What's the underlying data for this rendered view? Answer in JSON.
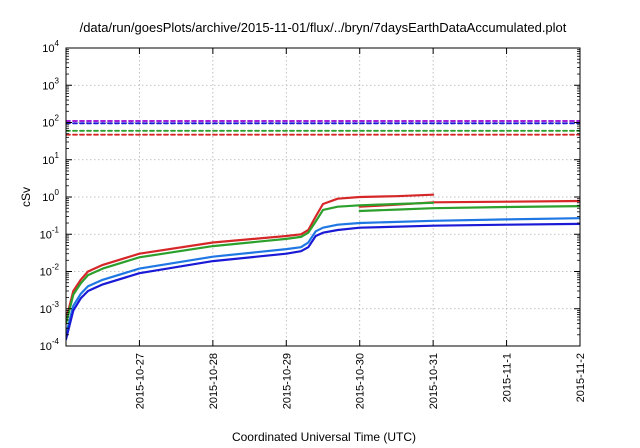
{
  "chart_data": {
    "type": "line",
    "title": "/data/run/goesPlots/archive/2015-11-01/flux/../bryn/7daysEarthDataAccumulated.plot",
    "xlabel": "Coordinated Universal Time (UTC)",
    "ylabel": "cSv",
    "yscale": "log",
    "ylim": [
      0.0001,
      10000
    ],
    "xlim": [
      "2015-10-26",
      "2015-11-02"
    ],
    "grid": true,
    "legend": "none",
    "y_ticks": [
      {
        "value": 0.0001,
        "base": "10",
        "exp": "-4"
      },
      {
        "value": 0.001,
        "base": "10",
        "exp": "-3"
      },
      {
        "value": 0.01,
        "base": "10",
        "exp": "-2"
      },
      {
        "value": 0.1,
        "base": "10",
        "exp": "-1"
      },
      {
        "value": 1,
        "base": "10",
        "exp": "0"
      },
      {
        "value": 10,
        "base": "10",
        "exp": "1"
      },
      {
        "value": 100,
        "base": "10",
        "exp": "2"
      },
      {
        "value": 1000,
        "base": "10",
        "exp": "3"
      },
      {
        "value": 10000,
        "base": "10",
        "exp": "4"
      }
    ],
    "x_ticks": [
      {
        "value": "2015-10-27",
        "label": "2015-10-27"
      },
      {
        "value": "2015-10-28",
        "label": "2015-10-28"
      },
      {
        "value": "2015-10-29",
        "label": "2015-10-29"
      },
      {
        "value": "2015-10-30",
        "label": "2015-10-30"
      },
      {
        "value": "2015-10-31",
        "label": "2015-10-31"
      },
      {
        "value": "2015-11-01",
        "label": "2015-11-1"
      },
      {
        "value": "2015-11-02",
        "label": "2015-11-2"
      }
    ],
    "series": [
      {
        "color": "#d62728",
        "style": "solid",
        "x": [
          "2015-10-26T00:00",
          "2015-10-26T02:24",
          "2015-10-26T04:48",
          "2015-10-26T07:12",
          "2015-10-26T12:00",
          "2015-10-27T00:00",
          "2015-10-28T00:00",
          "2015-10-29T00:00",
          "2015-10-29T04:48",
          "2015-10-29T07:12",
          "2015-10-29T09:36",
          "2015-10-29T12:00",
          "2015-10-29T16:48",
          "2015-10-30T00:00",
          "2015-10-30T12:00",
          "2015-10-31T00:00"
        ],
        "y": [
          0.0005,
          0.003,
          0.006,
          0.01,
          0.015,
          0.03,
          0.06,
          0.09,
          0.1,
          0.13,
          0.3,
          0.65,
          0.9,
          1.0,
          1.05,
          1.15
        ]
      },
      {
        "color": "#d62728",
        "style": "solid",
        "x": [
          "2015-10-30T00:00",
          "2015-10-30T12:00",
          "2015-10-31T00:00",
          "2015-11-01T00:00",
          "2015-11-02T00:00"
        ],
        "y": [
          0.55,
          0.62,
          0.72,
          0.75,
          0.78
        ]
      },
      {
        "color": "#2ca02c",
        "style": "solid",
        "x": [
          "2015-10-26T00:00",
          "2015-10-26T02:24",
          "2015-10-26T04:48",
          "2015-10-26T07:12",
          "2015-10-26T12:00",
          "2015-10-27T00:00",
          "2015-10-28T00:00",
          "2015-10-29T00:00",
          "2015-10-29T04:48",
          "2015-10-29T07:12",
          "2015-10-29T09:36",
          "2015-10-29T12:00",
          "2015-10-29T16:48",
          "2015-10-30T00:00",
          "2015-10-30T12:00",
          "2015-10-31T00:00"
        ],
        "y": [
          0.0004,
          0.0024,
          0.0048,
          0.008,
          0.012,
          0.024,
          0.048,
          0.075,
          0.085,
          0.11,
          0.22,
          0.45,
          0.55,
          0.6,
          0.65,
          0.7
        ]
      },
      {
        "color": "#2ca02c",
        "style": "solid",
        "x": [
          "2015-10-30T00:00",
          "2015-10-30T12:00",
          "2015-10-31T00:00",
          "2015-11-01T00:00",
          "2015-11-02T00:00"
        ],
        "y": [
          0.42,
          0.46,
          0.5,
          0.54,
          0.57
        ]
      },
      {
        "color": "#1f77e4",
        "style": "solid",
        "x": [
          "2015-10-26T00:00",
          "2015-10-26T02:24",
          "2015-10-26T04:48",
          "2015-10-26T07:12",
          "2015-10-26T12:00",
          "2015-10-27T00:00",
          "2015-10-28T00:00",
          "2015-10-29T00:00",
          "2015-10-29T04:48",
          "2015-10-29T07:12",
          "2015-10-29T09:36",
          "2015-10-29T12:00",
          "2015-10-29T16:48",
          "2015-10-30T00:00",
          "2015-10-31T00:00",
          "2015-11-01T00:00",
          "2015-11-02T00:00"
        ],
        "y": [
          0.0002,
          0.0012,
          0.0025,
          0.004,
          0.006,
          0.012,
          0.025,
          0.04,
          0.045,
          0.06,
          0.12,
          0.15,
          0.18,
          0.2,
          0.23,
          0.25,
          0.27
        ]
      },
      {
        "color": "#1a1ad6",
        "style": "solid",
        "x": [
          "2015-10-26T00:00",
          "2015-10-26T02:24",
          "2015-10-26T04:48",
          "2015-10-26T07:12",
          "2015-10-26T12:00",
          "2015-10-27T00:00",
          "2015-10-28T00:00",
          "2015-10-29T00:00",
          "2015-10-29T04:48",
          "2015-10-29T07:12",
          "2015-10-29T09:36",
          "2015-10-29T12:00",
          "2015-10-29T16:48",
          "2015-10-30T00:00",
          "2015-10-31T00:00",
          "2015-11-01T00:00",
          "2015-11-02T00:00"
        ],
        "y": [
          0.00015,
          0.0009,
          0.0019,
          0.003,
          0.0045,
          0.009,
          0.019,
          0.03,
          0.035,
          0.045,
          0.09,
          0.11,
          0.13,
          0.15,
          0.17,
          0.18,
          0.19
        ]
      },
      {
        "color": "#9400d3",
        "style": "dashed",
        "x": [
          "2015-10-26T00:00",
          "2015-11-02T00:00"
        ],
        "y": [
          110,
          110
        ]
      },
      {
        "color": "#1a1ad6",
        "style": "dashed",
        "x": [
          "2015-10-26T00:00",
          "2015-11-02T00:00"
        ],
        "y": [
          95,
          95
        ]
      },
      {
        "color": "#2ca02c",
        "style": "dashed",
        "x": [
          "2015-10-26T00:00",
          "2015-11-02T00:00"
        ],
        "y": [
          60,
          60
        ]
      },
      {
        "color": "#d62728",
        "style": "dashed",
        "x": [
          "2015-10-26T00:00",
          "2015-11-02T00:00"
        ],
        "y": [
          47,
          47
        ]
      }
    ]
  }
}
